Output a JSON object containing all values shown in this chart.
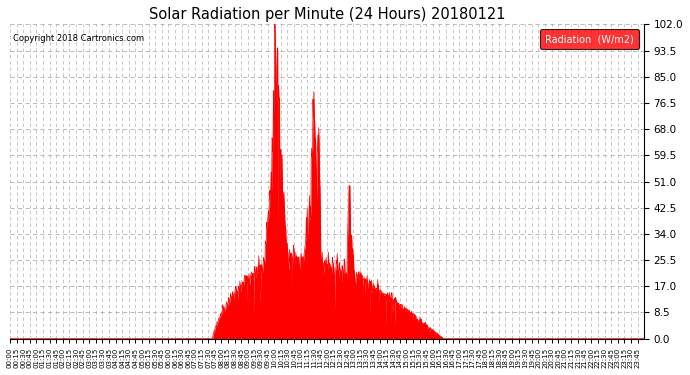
{
  "title": "Solar Radiation per Minute (24 Hours) 20180121",
  "copyright_text": "Copyright 2018 Cartronics.com",
  "background_color": "#ffffff",
  "fill_color": "#ff0000",
  "line_color": "#ff0000",
  "grid_color": "#b0b0b0",
  "ylim": [
    0.0,
    102.0
  ],
  "yticks": [
    0.0,
    8.5,
    17.0,
    25.5,
    34.0,
    42.5,
    51.0,
    59.5,
    68.0,
    76.5,
    85.0,
    93.5,
    102.0
  ],
  "legend_label": "Radiation  (W/m2)",
  "legend_bg": "#ff0000",
  "legend_text_color": "#ffffff",
  "total_minutes": 1440
}
